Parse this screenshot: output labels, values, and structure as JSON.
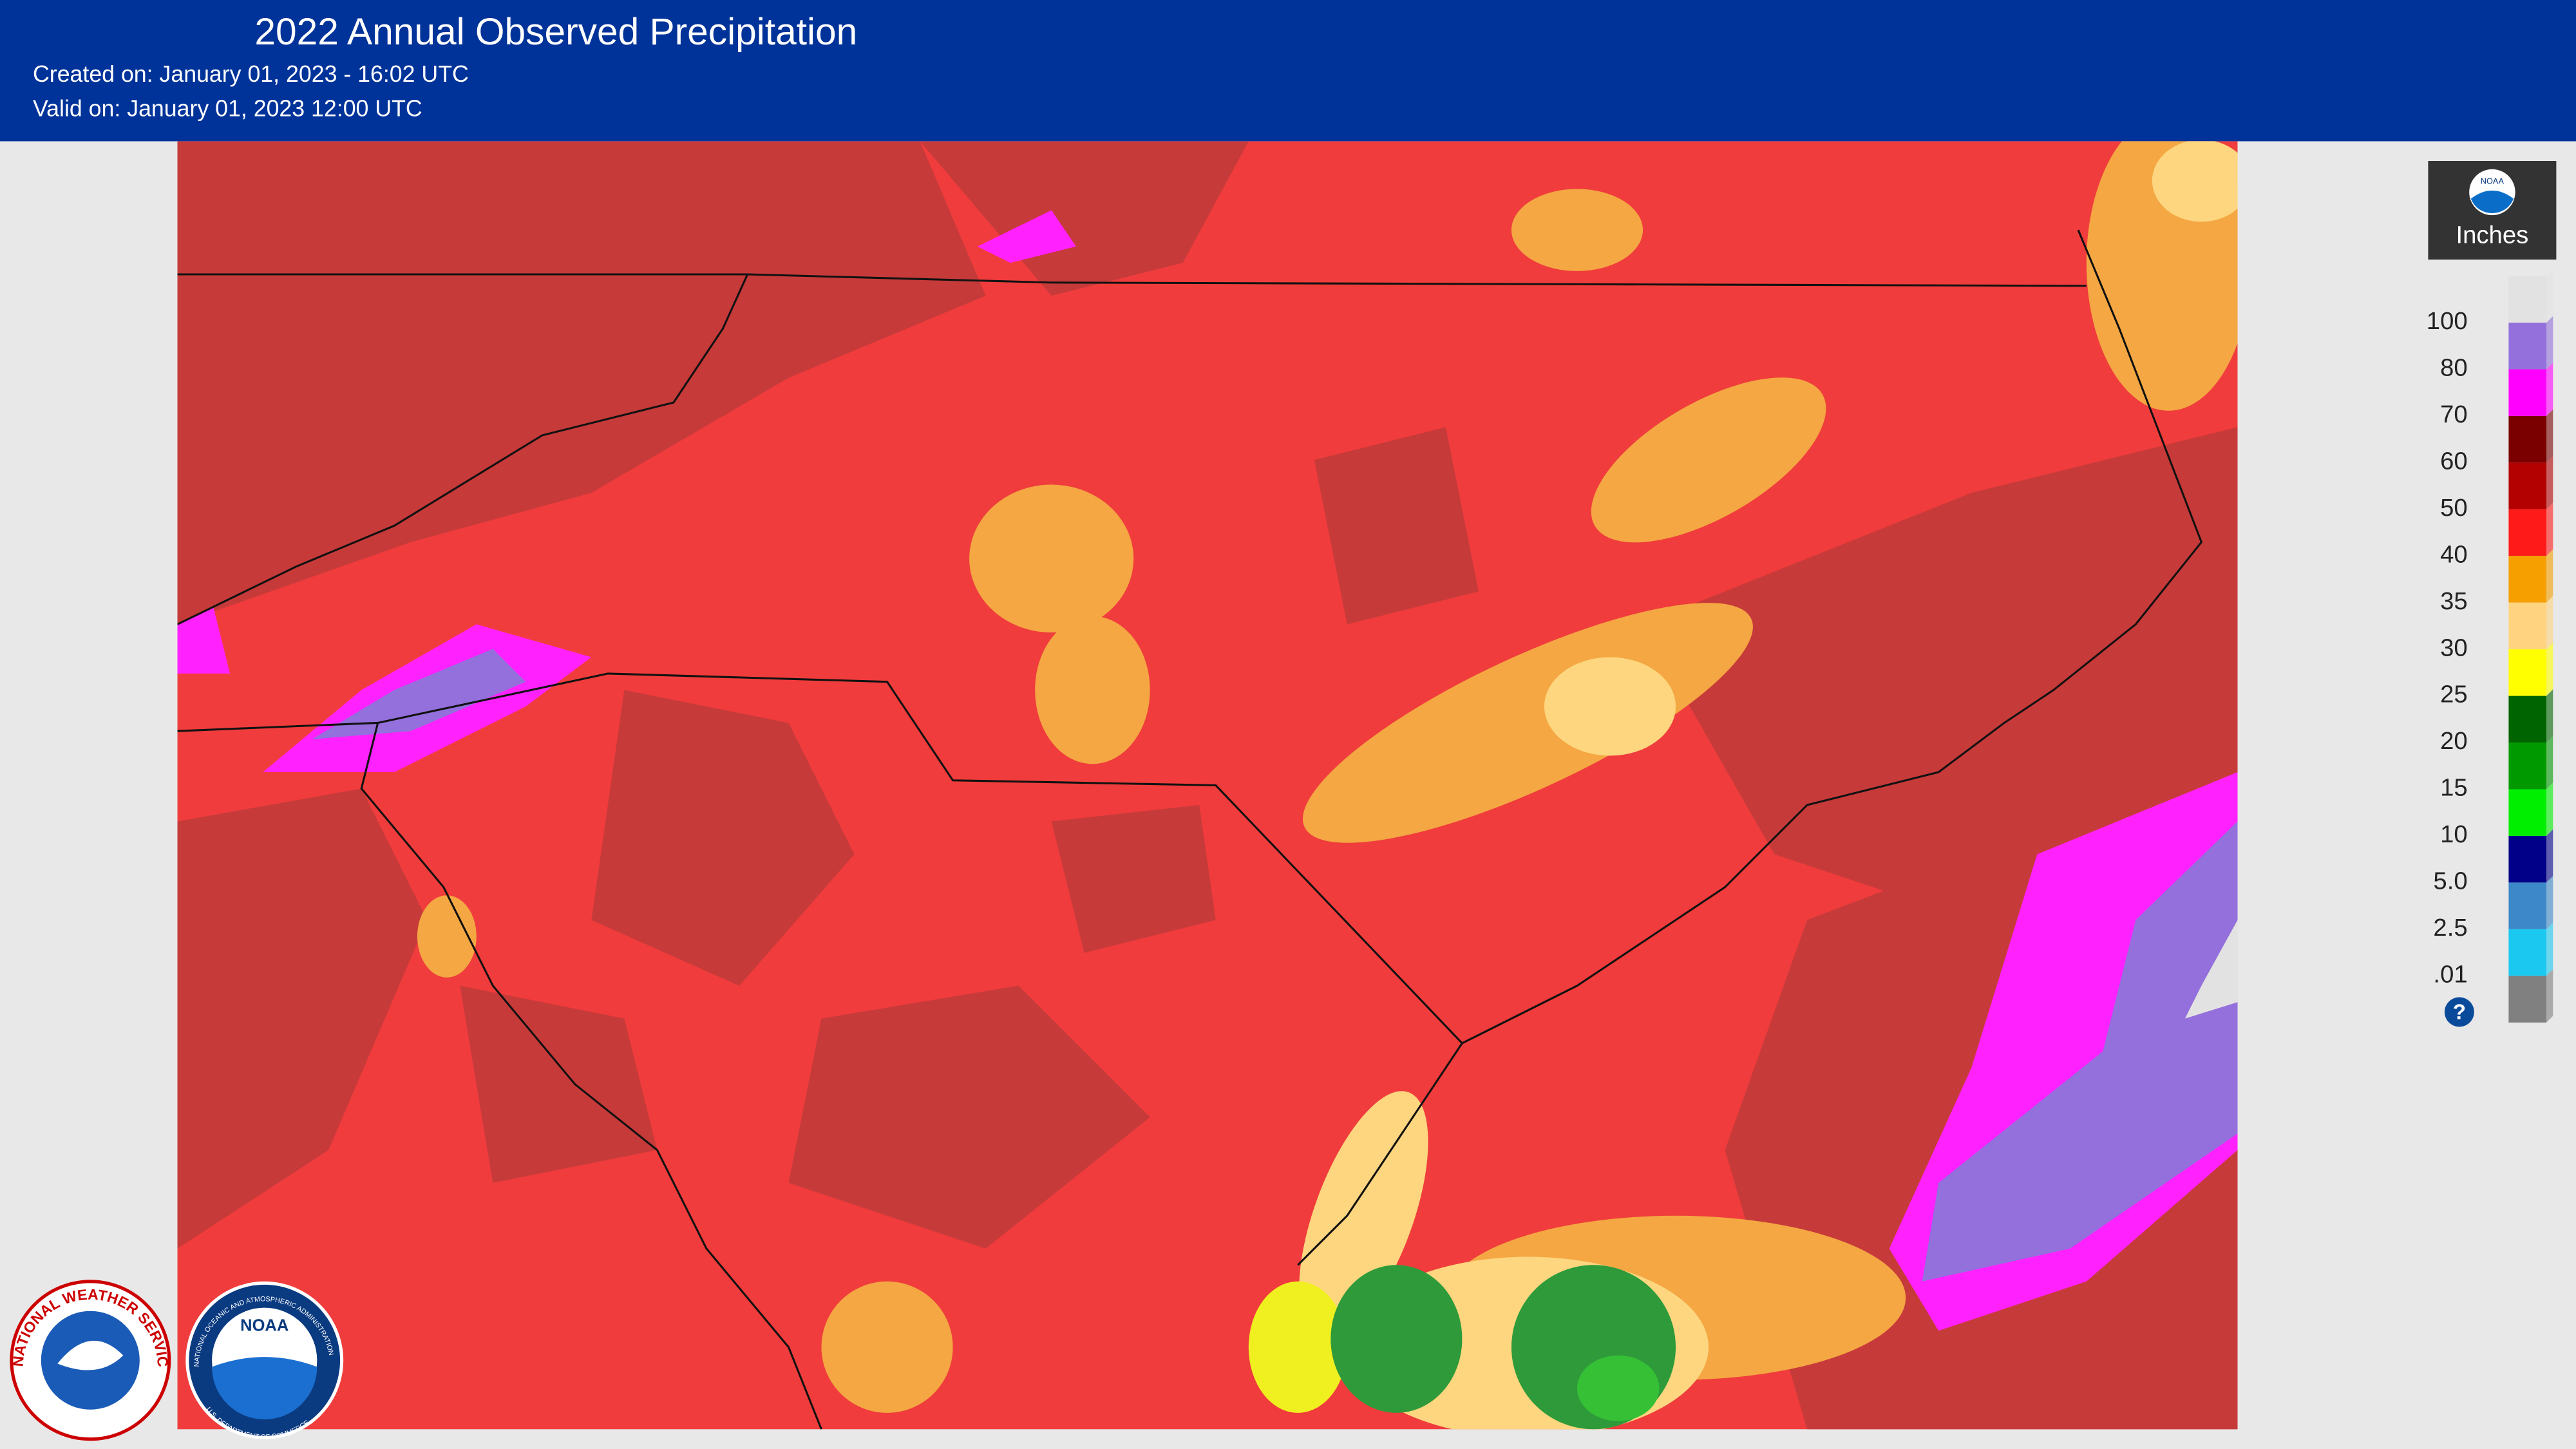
{
  "header": {
    "title": "2022 Annual Observed Precipitation",
    "created": "Created on: January 01, 2023 - 16:02 UTC",
    "valid": "Valid on: January 01, 2023 12:00 UTC"
  },
  "legend": {
    "logo": "NOAA",
    "unit": "Inches",
    "labels": [
      "100",
      "80",
      "70",
      "60",
      "50",
      "40",
      "35",
      "30",
      "25",
      "20",
      "15",
      "10",
      "5.0",
      "2.5",
      ".01"
    ],
    "colors": [
      "#e2e2e2",
      "#9370db",
      "#ff00ff",
      "#7a0000",
      "#b30000",
      "#ff1a1a",
      "#f5a000",
      "#ffd37f",
      "#ffff00",
      "#006400",
      "#009a00",
      "#00ee00",
      "#000088",
      "#3d88c8",
      "#1ac8f0",
      "#808080"
    ],
    "help": "?"
  },
  "logos": {
    "nws": "NATIONAL WEATHER SERVICE",
    "noaa": "NOAA",
    "noaa_ring_top": "NATIONAL OCEANIC AND ATMOSPHERIC ADMINISTRATION",
    "noaa_ring_bottom": "U.S. DEPARTMENT OF COMMERCE"
  }
}
